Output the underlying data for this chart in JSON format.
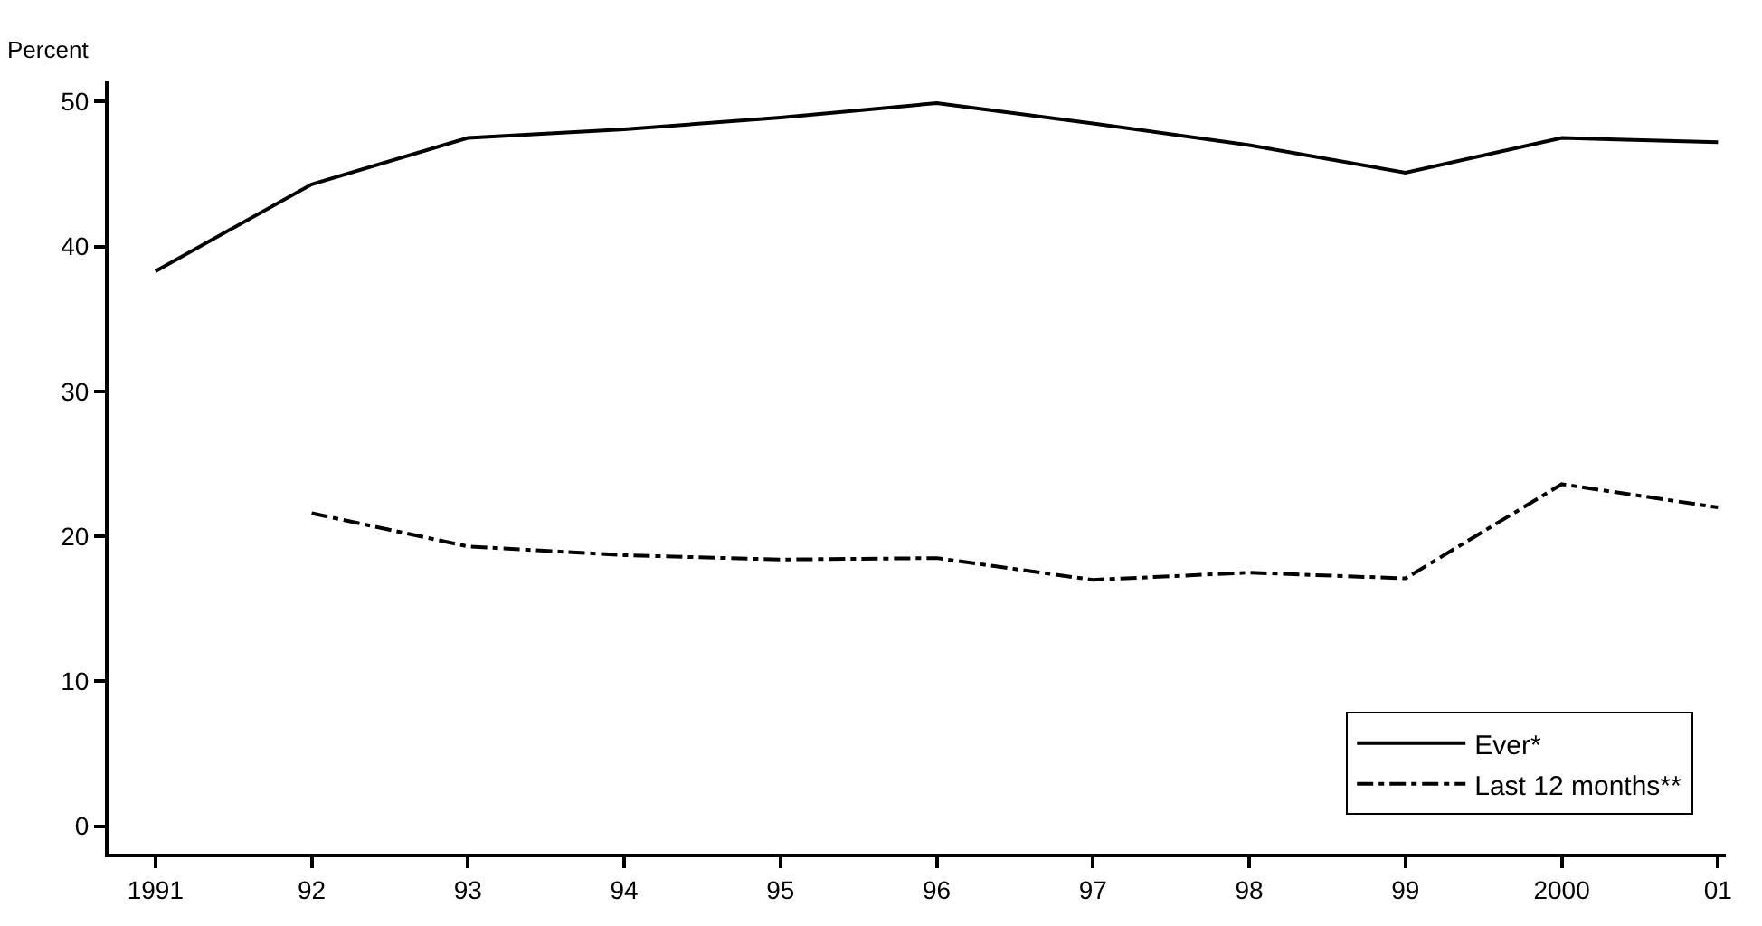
{
  "chart_data": {
    "type": "line",
    "ylabel": "Percent",
    "x": [
      1991,
      1992,
      1993,
      1994,
      1995,
      1996,
      1997,
      1998,
      1999,
      2000,
      2001
    ],
    "series": [
      {
        "name": "Ever*",
        "color": "#000000",
        "line_style": "solid",
        "values": [
          38.3,
          44.3,
          47.5,
          48.1,
          48.9,
          49.9,
          48.5,
          47.0,
          45.1,
          47.5,
          47.2
        ]
      },
      {
        "name": "Last 12 months**",
        "color": "#000000",
        "line_style": "dashdot",
        "values": [
          null,
          21.6,
          19.3,
          18.7,
          18.4,
          18.5,
          17.0,
          17.5,
          17.1,
          23.6,
          22.0
        ]
      }
    ],
    "xlim": [
      1990.7,
      2001.05
    ],
    "xticks": [
      {
        "value": 1991,
        "label": "1991"
      },
      {
        "value": 1992,
        "label": "92"
      },
      {
        "value": 1993,
        "label": "93"
      },
      {
        "value": 1994,
        "label": "94"
      },
      {
        "value": 1995,
        "label": "95"
      },
      {
        "value": 1996,
        "label": "96"
      },
      {
        "value": 1997,
        "label": "97"
      },
      {
        "value": 1998,
        "label": "98"
      },
      {
        "value": 1999,
        "label": "99"
      },
      {
        "value": 2000,
        "label": "2000"
      },
      {
        "value": 2001,
        "label": "01"
      }
    ],
    "ylim": [
      -1.9,
      51.4
    ],
    "yticks": [
      0,
      10,
      20,
      30,
      40,
      50
    ],
    "legend": "bottom right",
    "marker": "none"
  }
}
